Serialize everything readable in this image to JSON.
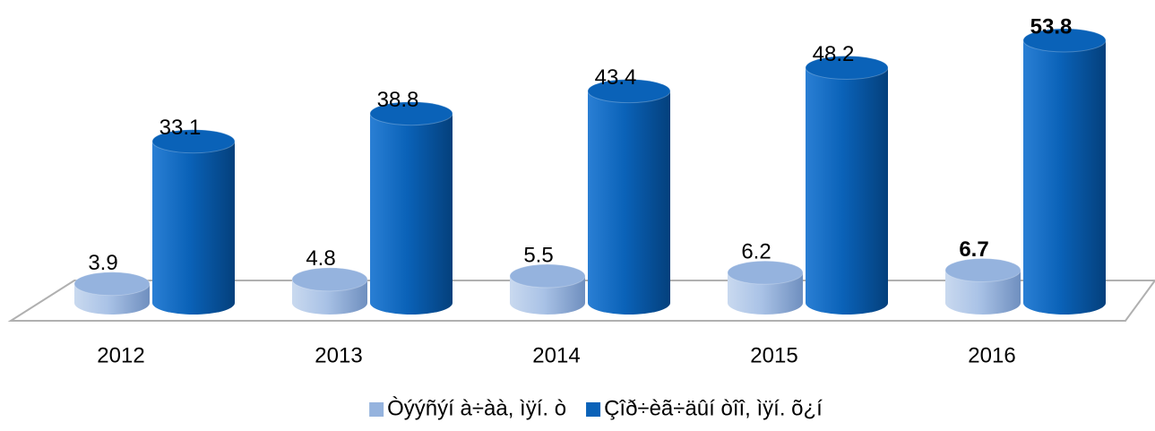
{
  "chart_data": {
    "type": "bar3d",
    "categories": [
      "2012",
      "2013",
      "2014",
      "2015",
      "2016"
    ],
    "series": [
      {
        "name": "Òýýñýí à÷àà, ìÿí. ò",
        "color": "#95b3de",
        "values": [
          3.9,
          4.8,
          5.5,
          6.2,
          6.7
        ]
      },
      {
        "name": "Çîð÷èã÷äûí òîî, ìÿí. õ¿í",
        "color": "#0a62b8",
        "values": [
          33.1,
          38.8,
          43.4,
          48.2,
          53.8
        ]
      }
    ],
    "legend": "bottom"
  }
}
